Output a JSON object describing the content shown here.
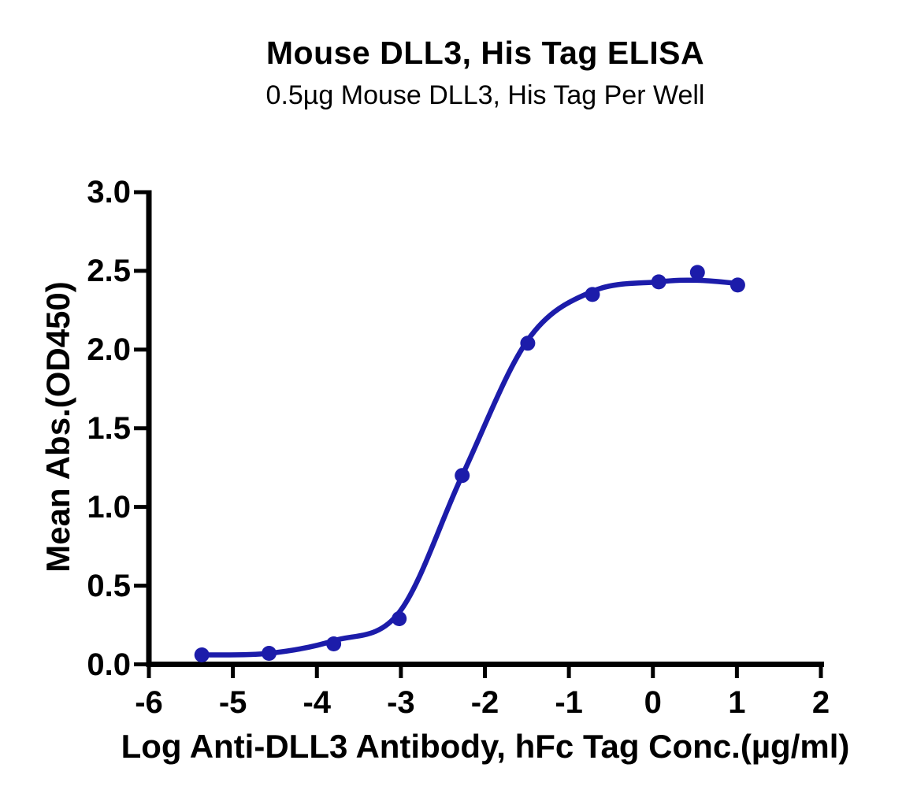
{
  "chart_data": {
    "type": "scatter",
    "title": "Mouse DLL3, His Tag ELISA",
    "subtitle": "0.5µg Mouse DLL3, His Tag Per Well",
    "xlabel": "Log Anti-DLL3 Antibody, hFc Tag Conc.(µg/ml)",
    "ylabel": "Mean Abs.(OD450)",
    "xlim": [
      -6,
      2
    ],
    "ylim": [
      0.0,
      3.0
    ],
    "xticks": [
      -6,
      -5,
      -4,
      -3,
      -2,
      -1,
      0,
      1,
      2
    ],
    "xtick_labels": [
      "-6",
      "-5",
      "-4",
      "-3",
      "-2",
      "-1",
      "0",
      "1",
      "2"
    ],
    "yticks": [
      0.0,
      0.5,
      1.0,
      1.5,
      2.0,
      2.5,
      3.0
    ],
    "ytick_labels": [
      "0.0",
      "0.5",
      "1.0",
      "1.5",
      "2.0",
      "2.5",
      "3.0"
    ],
    "grid": false,
    "legend": null,
    "marker_color": "#1c1caa",
    "line_color": "#1c1caa",
    "axis_color": "#000000",
    "points": [
      [
        -5.37,
        0.06
      ],
      [
        -4.57,
        0.07
      ],
      [
        -3.8,
        0.13
      ],
      [
        -3.02,
        0.29
      ],
      [
        -2.27,
        1.2
      ],
      [
        -1.49,
        2.04
      ],
      [
        -0.72,
        2.35
      ],
      [
        0.07,
        2.43
      ],
      [
        0.53,
        2.49
      ],
      [
        1.01,
        2.41
      ]
    ],
    "fit_curve": [
      [
        -5.37,
        0.06
      ],
      [
        -4.57,
        0.07
      ],
      [
        -3.8,
        0.15
      ],
      [
        -3.02,
        0.33
      ],
      [
        -2.27,
        1.2
      ],
      [
        -1.49,
        2.06
      ],
      [
        -0.72,
        2.37
      ],
      [
        0.07,
        2.43
      ],
      [
        0.53,
        2.44
      ],
      [
        1.01,
        2.42
      ]
    ]
  }
}
